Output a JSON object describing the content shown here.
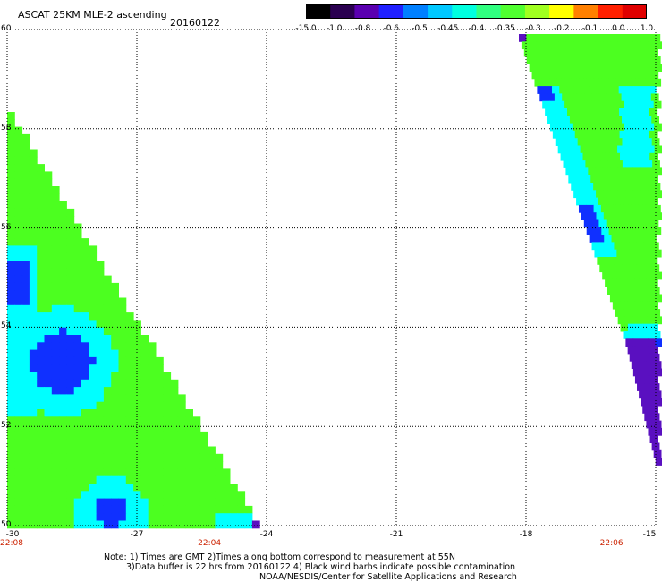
{
  "header": {
    "title": "ASCAT 25KM MLE-2 ascending",
    "date": "20160122"
  },
  "colorbar": {
    "labels": [
      "-15.0",
      "-1.0",
      "-0.8",
      "-0.6",
      "-0.5",
      "-0.45",
      "-0.4",
      "-0.35",
      "-0.3",
      "-0.2",
      "-0.1",
      "0.0",
      "1.0"
    ],
    "colors": [
      "#000000",
      "#2a0050",
      "#5a00b0",
      "#2020ff",
      "#0080ff",
      "#00c8ff",
      "#00ffe0",
      "#30ff80",
      "#50ff30",
      "#a0ff20",
      "#ffff00",
      "#ff8000",
      "#ff2000",
      "#e00000"
    ]
  },
  "map": {
    "lat_labels": [
      "60",
      "58",
      "56",
      "54",
      "52",
      "50"
    ],
    "lon_labels": [
      "-30",
      "-27",
      "-24",
      "-21",
      "-18",
      "-15"
    ],
    "lat_range": [
      50,
      60
    ],
    "lon_range": [
      -30,
      -15
    ],
    "times": [
      {
        "label": "22:08",
        "lon": -30
      },
      {
        "label": "22:04",
        "lon": -25.3
      },
      {
        "label": "22:06",
        "lon": -16.0
      }
    ],
    "swath_colors": {
      "green": "#4cff20",
      "lightgreen": "#90ff30",
      "cyan": "#00ffff",
      "lightblue": "#00a0ff",
      "blue": "#1030ff",
      "purple": "#5a10c0"
    }
  },
  "notes": {
    "line1": "Note: 1) Times are GMT 2)Times along bottom correspond to measurement at 55N",
    "line2": "3)Data buffer is 22 hrs from 20160122 4) Black wind barbs indicate possible contamination",
    "line3": "NOAA/NESDIS/Center for Satellite Applications and Research"
  }
}
